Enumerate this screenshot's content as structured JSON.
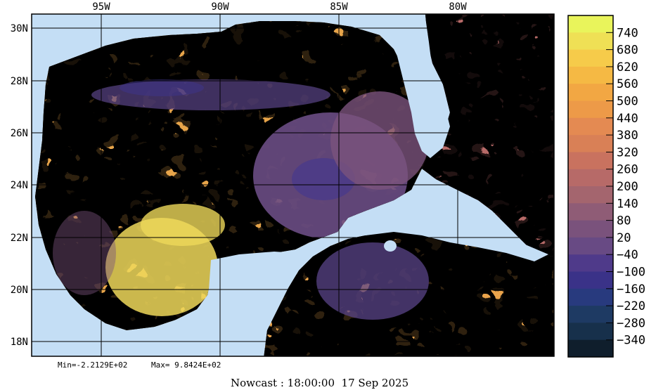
{
  "map": {
    "lon_labels": [
      "95W",
      "90W",
      "85W",
      "80W"
    ],
    "lat_labels": [
      "30N",
      "28N",
      "26N",
      "24N",
      "22N",
      "20N",
      "18N"
    ],
    "colors": {
      "sea": "#c4def5",
      "grid": "#000000"
    }
  },
  "colorbar": {
    "ticks": [
      "740",
      "680",
      "620",
      "560",
      "500",
      "440",
      "380",
      "320",
      "260",
      "200",
      "140",
      "80",
      "20",
      "−40",
      "−100",
      "−160",
      "−220",
      "−280",
      "−340"
    ],
    "colors": [
      "#e9f45b",
      "#efe055",
      "#f6cb4a",
      "#f5b944",
      "#f2a743",
      "#ed9a48",
      "#e48a52",
      "#d98056",
      "#c9725f",
      "#b76a68",
      "#a4656e",
      "#8f5c76",
      "#7a527c",
      "#684a84",
      "#4f3a8a",
      "#3a3288",
      "#283a7e",
      "#1e3a63",
      "#17304b",
      "#0f1e2c"
    ]
  },
  "stats": {
    "min_text": "Min=-2.2129E+02",
    "max_text": "Max= 9.8424E+02"
  },
  "footer": {
    "text": "Nowcast : 18:00:00  17 Sep 2025"
  }
}
